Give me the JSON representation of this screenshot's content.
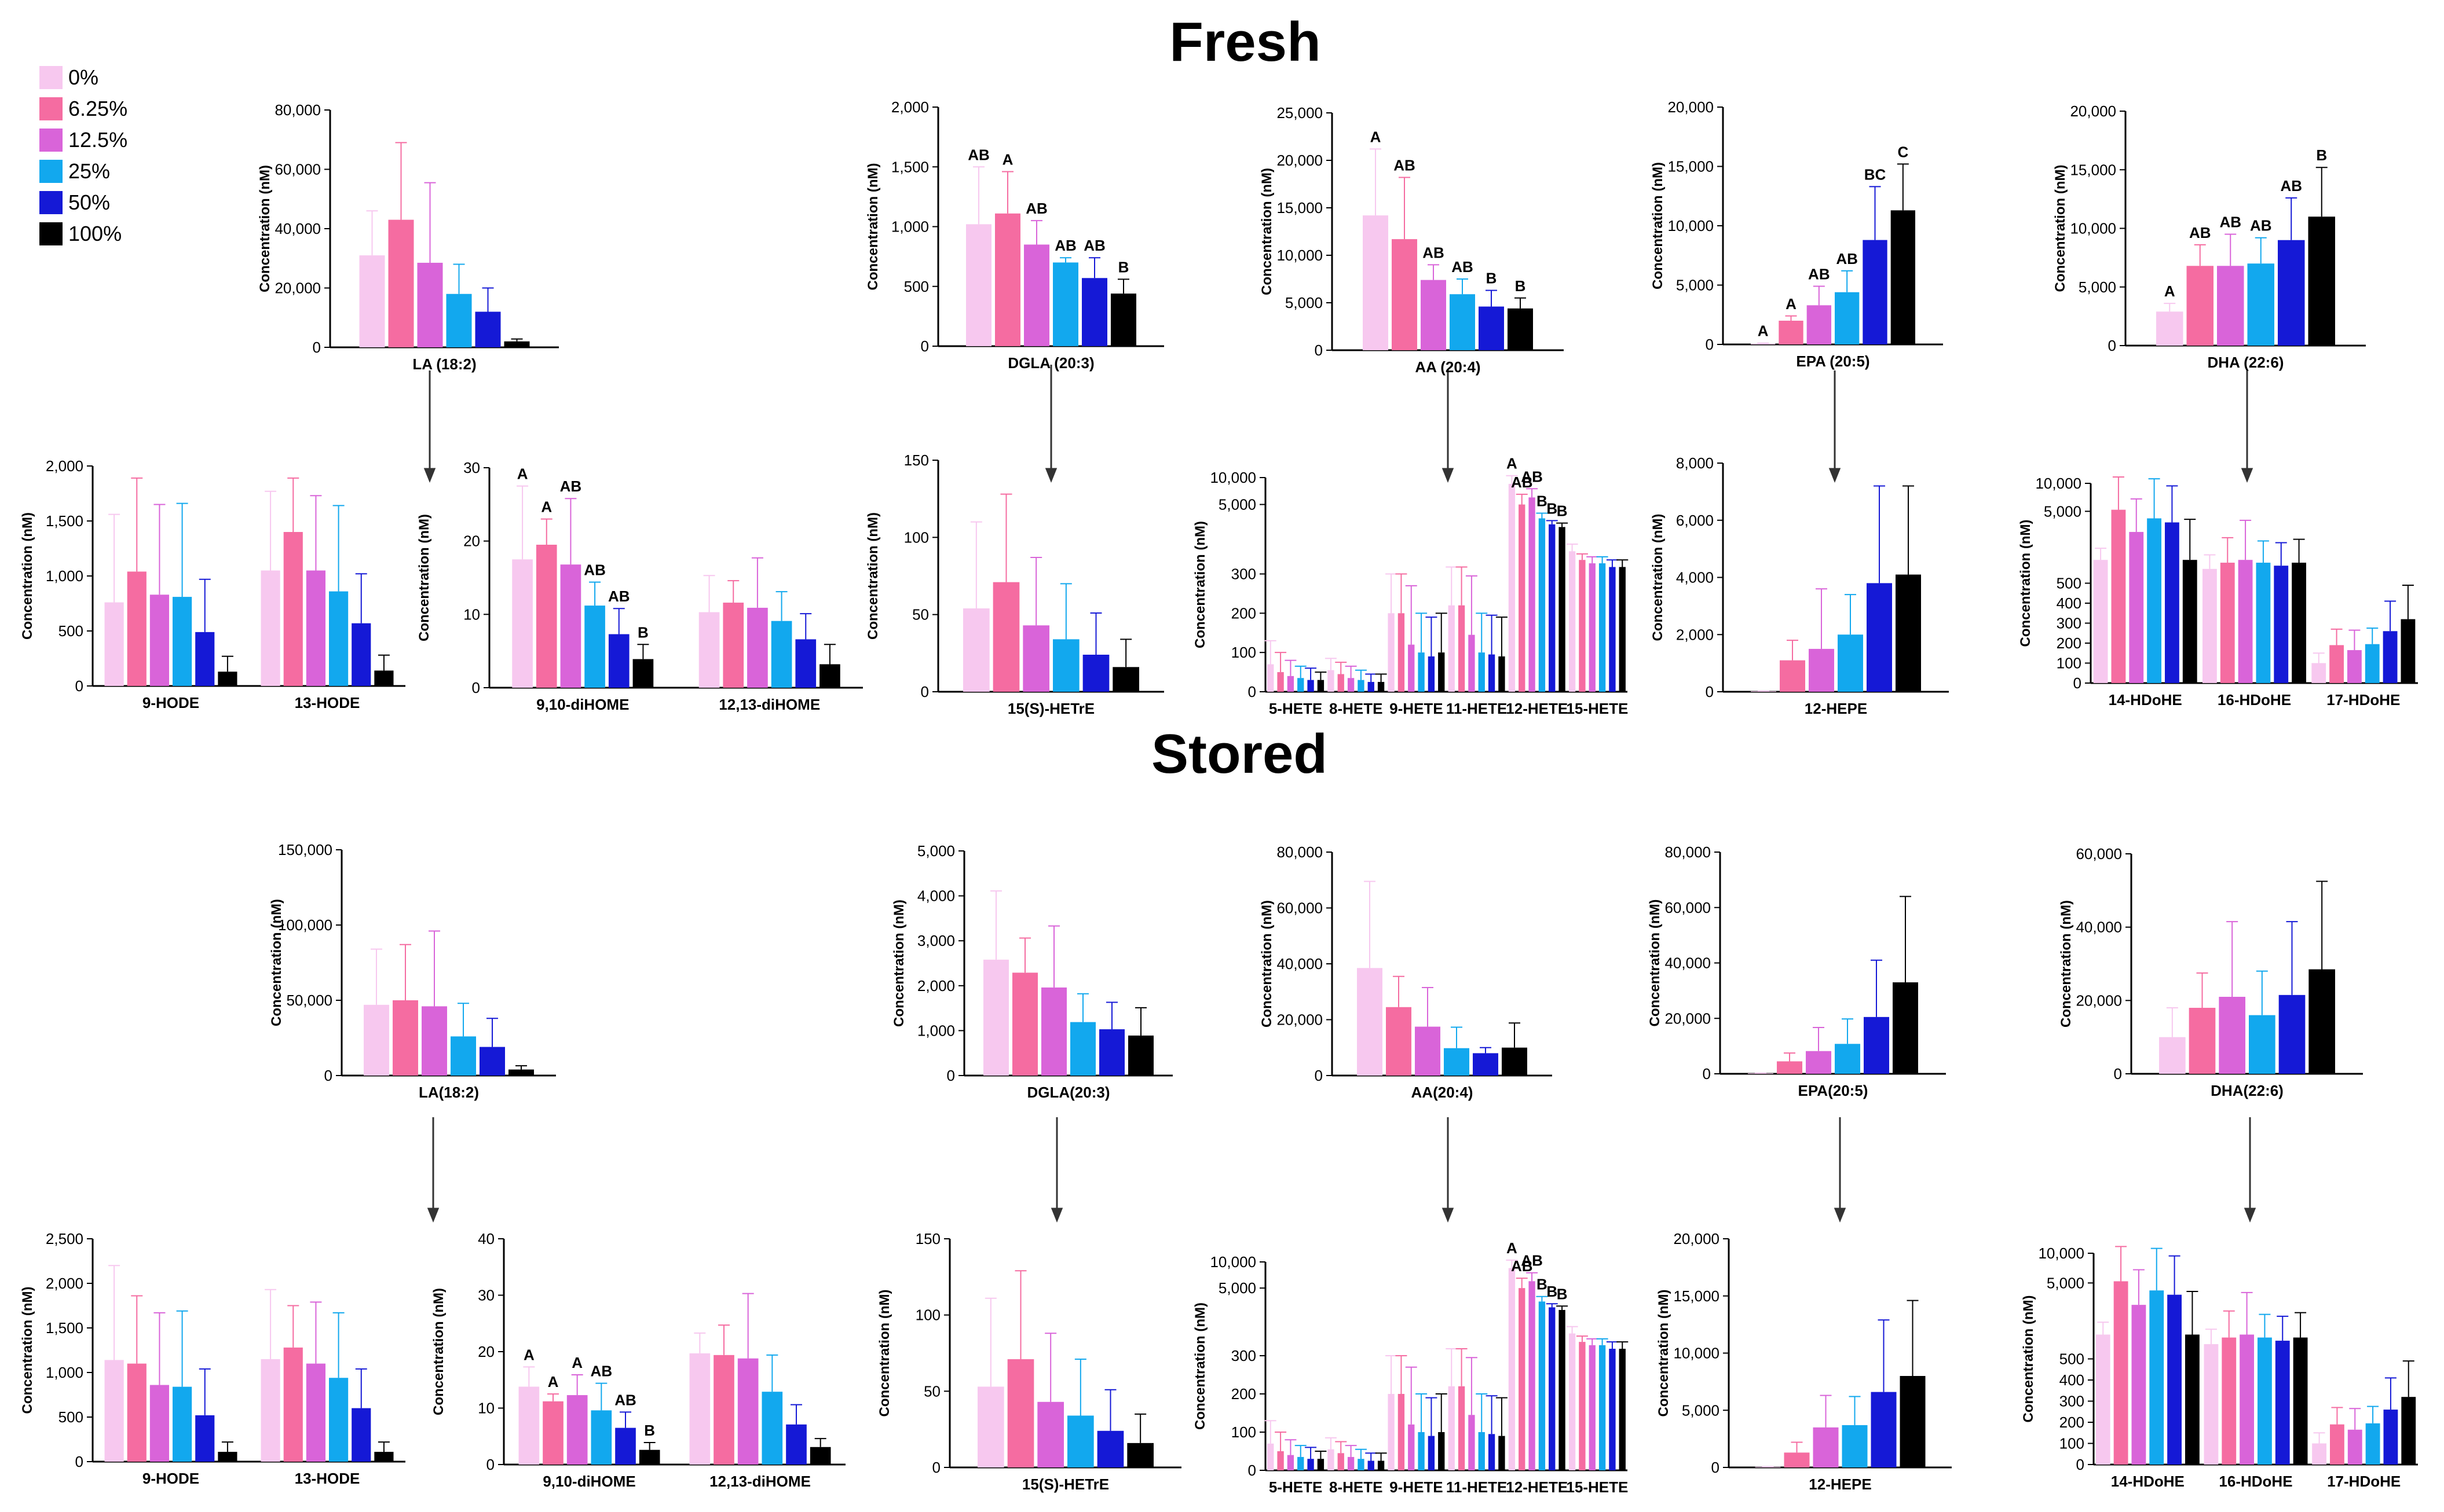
{
  "colors": [
    "#f7c8ef",
    "#f56ca1",
    "#d964d9",
    "#12a8ee",
    "#1519d6",
    "#000000"
  ],
  "legend": [
    "0%",
    "6.25%",
    "12.5%",
    "25%",
    "50%",
    "100%"
  ],
  "sections": [
    {
      "title": "Fresh"
    },
    {
      "title": "Stored"
    }
  ],
  "chart_data": [
    {
      "id": "f-la",
      "section": "Fresh",
      "type": "bar",
      "ylabel": "Concentration (nM)",
      "ylim": [
        0,
        80000
      ],
      "yticks": [
        "0",
        "20,000",
        "40,000",
        "60,000",
        "80,000"
      ],
      "categories": [
        "LA (18:2)"
      ],
      "values": [
        [
          31000,
          43000,
          28500,
          18000,
          12000,
          2000
        ]
      ],
      "errors": [
        [
          15000,
          26000,
          27000,
          10000,
          8000,
          800
        ]
      ],
      "sig": null
    },
    {
      "id": "f-dgla",
      "section": "Fresh",
      "type": "bar",
      "ylabel": "Concentration (nM)",
      "ylim": [
        0,
        2000
      ],
      "yticks": [
        "0",
        "500",
        "1,000",
        "1,500",
        "2,000"
      ],
      "categories": [
        "DGLA (20:3)"
      ],
      "values": [
        [
          1020,
          1110,
          850,
          700,
          570,
          440
        ]
      ],
      "errors": [
        [
          480,
          350,
          200,
          40,
          170,
          120
        ]
      ],
      "sig": [
        [
          "AB",
          "A",
          "AB",
          "AB",
          "AB",
          "B"
        ]
      ]
    },
    {
      "id": "f-aa",
      "section": "Fresh",
      "type": "bar",
      "ylabel": "Concentration (nM)",
      "ylim": [
        0,
        25000
      ],
      "yticks": [
        "0",
        "5,000",
        "10,000",
        "15,000",
        "20,000",
        "25,000"
      ],
      "categories": [
        "AA (20:4)"
      ],
      "values": [
        [
          14200,
          11700,
          7400,
          5900,
          4600,
          4400
        ]
      ],
      "errors": [
        [
          7000,
          6500,
          1600,
          1600,
          1700,
          1100
        ]
      ],
      "sig": [
        [
          "A",
          "AB",
          "AB",
          "AB",
          "B",
          "B"
        ]
      ]
    },
    {
      "id": "f-epa",
      "section": "Fresh",
      "type": "bar",
      "ylabel": "Concentration (nM)",
      "ylim": [
        0,
        20000
      ],
      "yticks": [
        "0",
        "5,000",
        "10,000",
        "15,000",
        "20,000"
      ],
      "categories": [
        "EPA (20:5)"
      ],
      "values": [
        [
          80,
          2000,
          3300,
          4400,
          8800,
          11300
        ]
      ],
      "errors": [
        [
          30,
          400,
          1600,
          1800,
          4500,
          3900
        ]
      ],
      "sig": [
        [
          "A",
          "A",
          "AB",
          "AB",
          "BC",
          "C"
        ]
      ]
    },
    {
      "id": "f-dha",
      "section": "Fresh",
      "type": "bar",
      "ylabel": "Concentration (nM)",
      "ylim": [
        0,
        20000
      ],
      "yticks": [
        "0",
        "5,000",
        "10,000",
        "15,000",
        "20,000"
      ],
      "categories": [
        "DHA (22:6)"
      ],
      "values": [
        [
          2900,
          6800,
          6800,
          7000,
          9000,
          11000
        ]
      ],
      "errors": [
        [
          700,
          1800,
          2700,
          2200,
          3600,
          4200
        ]
      ],
      "sig": [
        [
          "A",
          "AB",
          "AB",
          "AB",
          "AB",
          "B"
        ]
      ]
    },
    {
      "id": "f-hode",
      "section": "Fresh",
      "type": "bar",
      "ylabel": "Concentration (nM)",
      "ylim": [
        0,
        2000
      ],
      "yticks": [
        "0",
        "500",
        "1,000",
        "1,500",
        "2,000"
      ],
      "categories": [
        "9-HODE",
        "13-HODE"
      ],
      "values": [
        [
          760,
          1040,
          830,
          810,
          490,
          130
        ],
        [
          1050,
          1400,
          1050,
          860,
          570,
          140
        ]
      ],
      "errors": [
        [
          800,
          850,
          820,
          850,
          480,
          140
        ],
        [
          720,
          490,
          680,
          780,
          450,
          140
        ]
      ],
      "sig": null
    },
    {
      "id": "f-dihome",
      "section": "Fresh",
      "type": "bar",
      "ylabel": "Concentration (nM)",
      "ylim": [
        0,
        30
      ],
      "yticks": [
        "0",
        "10",
        "20",
        "30"
      ],
      "categories": [
        "9,10-diHOME",
        "12,13-diHOME"
      ],
      "values": [
        [
          17.5,
          19.5,
          16.8,
          11.2,
          7.3,
          3.9
        ],
        [
          10.3,
          11.6,
          10.9,
          9.1,
          6.6,
          3.2
        ]
      ],
      "errors": [
        [
          10,
          3.5,
          9,
          3.2,
          3.5,
          2
        ],
        [
          5,
          3,
          6.8,
          4,
          3.5,
          2.7
        ]
      ],
      "sig": [
        [
          "A",
          "A",
          "AB",
          "AB",
          "AB",
          "B"
        ],
        null
      ]
    },
    {
      "id": "f-hetre",
      "section": "Fresh",
      "type": "bar",
      "ylabel": "Concentration (nM)",
      "ylim": [
        0,
        150
      ],
      "yticks": [
        "0",
        "50",
        "100",
        "150"
      ],
      "categories": [
        "15(S)-HETrE"
      ],
      "values": [
        [
          54,
          71,
          43,
          34,
          24,
          16
        ]
      ],
      "errors": [
        [
          56,
          57,
          44,
          36,
          27,
          18
        ]
      ],
      "sig": null
    },
    {
      "id": "f-hete",
      "section": "Fresh",
      "type": "bar",
      "scale": "broken",
      "ylabel": "Concentration (nM)",
      "yticks": [
        "0",
        "100",
        "200",
        "300",
        "5,000",
        "10,000"
      ],
      "categories": [
        "5-HETE",
        "8-HETE",
        "9-HETE",
        "11-HETE",
        "12-HETE",
        "15-HETE"
      ],
      "values": [
        [
          70,
          50,
          40,
          35,
          30,
          30
        ],
        [
          55,
          45,
          35,
          30,
          25,
          25
        ],
        [
          200,
          200,
          120,
          100,
          90,
          100
        ],
        [
          220,
          220,
          145,
          100,
          95,
          90
        ],
        [
          8500,
          5000,
          6000,
          3500,
          3000,
          2800
        ],
        [
          1500,
          1200,
          1100,
          1100,
          1000,
          1000
        ]
      ],
      "errors": [
        [
          60,
          50,
          40,
          30,
          30,
          20
        ],
        [
          30,
          30,
          30,
          25,
          20,
          20
        ],
        [
          100,
          100,
          150,
          100,
          100,
          100
        ],
        [
          100,
          100,
          150,
          100,
          100,
          100
        ],
        [
          2000,
          1500,
          1500,
          500,
          300,
          300
        ],
        [
          300,
          200,
          200,
          200,
          200,
          200
        ]
      ],
      "sig": [
        null,
        null,
        null,
        null,
        [
          "A",
          "AB",
          "AB",
          "B",
          "B",
          "B"
        ],
        null
      ]
    },
    {
      "id": "f-hepe",
      "section": "Fresh",
      "type": "bar",
      "ylabel": "Concentration (nM)",
      "ylim": [
        0,
        8000
      ],
      "yticks": [
        "0",
        "2,000",
        "4,000",
        "6,000",
        "8,000"
      ],
      "categories": [
        "12-HEPE"
      ],
      "values": [
        [
          20,
          1100,
          1500,
          2000,
          3800,
          4100
        ]
      ],
      "errors": [
        [
          10,
          700,
          2100,
          1400,
          3400,
          3100
        ]
      ],
      "sig": null
    },
    {
      "id": "f-hdohe",
      "section": "Fresh",
      "type": "bar",
      "scale": "broken",
      "ylabel": "Concentration (nM)",
      "yticks": [
        "0",
        "100",
        "200",
        "300",
        "400",
        "500",
        "5,000",
        "10,000"
      ],
      "categories": [
        "14-HDoHE",
        "16-HDoHE",
        "17-HDoHE"
      ],
      "values": [
        [
          1500,
          5200,
          3000,
          4200,
          3800,
          1500
        ],
        [
          1200,
          1400,
          1500,
          1400,
          1300,
          1400
        ],
        [
          100,
          190,
          165,
          195,
          260,
          320
        ]
      ],
      "errors": [
        [
          500,
          6500,
          3800,
          7000,
          5600,
          2600
        ],
        [
          500,
          1200,
          2500,
          1000,
          1000,
          1100
        ],
        [
          50,
          80,
          100,
          80,
          150,
          170
        ]
      ],
      "sig": null
    },
    {
      "id": "s-la",
      "section": "Stored",
      "type": "bar",
      "ylabel": "Concentration (nM)",
      "ylim": [
        0,
        150000
      ],
      "yticks": [
        "0",
        "50,000",
        "100,000",
        "150,000"
      ],
      "categories": [
        "LA(18:2)"
      ],
      "values": [
        [
          47000,
          50000,
          46000,
          26000,
          19000,
          4000
        ]
      ],
      "errors": [
        [
          37000,
          37000,
          50000,
          22000,
          19000,
          2500
        ]
      ],
      "sig": null
    },
    {
      "id": "s-dgla",
      "section": "Stored",
      "type": "bar",
      "ylabel": "Concentration (nM)",
      "ylim": [
        0,
        5000
      ],
      "yticks": [
        "0",
        "1,000",
        "2,000",
        "3,000",
        "4,000",
        "5,000"
      ],
      "categories": [
        "DGLA(20:3)"
      ],
      "values": [
        [
          2580,
          2290,
          1960,
          1190,
          1030,
          890
        ]
      ],
      "errors": [
        [
          1530,
          770,
          1370,
          630,
          600,
          620
        ]
      ],
      "sig": null
    },
    {
      "id": "s-aa",
      "section": "Stored",
      "type": "bar",
      "ylabel": "Concentration (nM)",
      "ylim": [
        0,
        80000
      ],
      "yticks": [
        "0",
        "20,000",
        "40,000",
        "60,000",
        "80,000"
      ],
      "categories": [
        "AA(20:4)"
      ],
      "values": [
        [
          38500,
          24500,
          17500,
          9800,
          8000,
          10000
        ]
      ],
      "errors": [
        [
          31000,
          11000,
          14000,
          7500,
          2000,
          8800
        ]
      ],
      "sig": null
    },
    {
      "id": "s-epa",
      "section": "Stored",
      "type": "bar",
      "ylabel": "Concentration (nM)",
      "ylim": [
        0,
        80000
      ],
      "yticks": [
        "0",
        "20,000",
        "40,000",
        "60,000",
        "80,000"
      ],
      "categories": [
        "EPA(20:5)"
      ],
      "values": [
        [
          200,
          4500,
          8200,
          10800,
          20500,
          33000
        ]
      ],
      "errors": [
        [
          100,
          3000,
          8500,
          9000,
          20500,
          31000
        ]
      ],
      "sig": null
    },
    {
      "id": "s-dha",
      "section": "Stored",
      "type": "bar",
      "ylabel": "Concentration (nM)",
      "ylim": [
        0,
        60000
      ],
      "yticks": [
        "0",
        "20,000",
        "40,000",
        "60,000"
      ],
      "categories": [
        "DHA(22:6)"
      ],
      "values": [
        [
          10000,
          18000,
          21000,
          16000,
          21500,
          28500
        ]
      ],
      "errors": [
        [
          8000,
          9500,
          20500,
          12000,
          20000,
          24000
        ]
      ],
      "sig": null
    },
    {
      "id": "s-hode",
      "section": "Stored",
      "type": "bar",
      "ylabel": "Concentration (nM)",
      "ylim": [
        0,
        2500
      ],
      "yticks": [
        "0",
        "500",
        "1,000",
        "1,500",
        "2,000",
        "2,500"
      ],
      "categories": [
        "9-HODE",
        "13-HODE"
      ],
      "values": [
        [
          1140,
          1100,
          860,
          840,
          520,
          110
        ],
        [
          1150,
          1280,
          1100,
          940,
          600,
          110
        ]
      ],
      "errors": [
        [
          1060,
          760,
          810,
          850,
          520,
          110
        ],
        [
          780,
          470,
          690,
          730,
          440,
          110
        ]
      ],
      "sig": null
    },
    {
      "id": "s-dihome",
      "section": "Stored",
      "type": "bar",
      "ylabel": "Concentration (nM)",
      "ylim": [
        0,
        40
      ],
      "yticks": [
        "0",
        "10",
        "20",
        "30",
        "40"
      ],
      "categories": [
        "9,10-diHOME",
        "12,13-diHOME"
      ],
      "values": [
        [
          13.8,
          11.2,
          12.3,
          9.6,
          6.5,
          2.6
        ],
        [
          19.7,
          19.4,
          18.8,
          12.9,
          7.1,
          3.1
        ]
      ],
      "errors": [
        [
          3.5,
          1.3,
          3.6,
          4.8,
          2.8,
          1.3
        ],
        [
          3.6,
          5.3,
          11.5,
          6.5,
          3.5,
          1.5
        ]
      ],
      "sig": [
        [
          "A",
          "A",
          "A",
          "AB",
          "AB",
          "B"
        ],
        null
      ]
    },
    {
      "id": "s-hetre",
      "section": "Stored",
      "type": "bar",
      "ylabel": "Concentration (nM)",
      "ylim": [
        0,
        150
      ],
      "yticks": [
        "0",
        "50",
        "100",
        "150"
      ],
      "categories": [
        "15(S)-HETrE"
      ],
      "values": [
        [
          53,
          71,
          43,
          34,
          24,
          16
        ]
      ],
      "errors": [
        [
          58,
          58,
          45,
          37,
          27,
          19
        ]
      ],
      "sig": null
    },
    {
      "id": "s-hete",
      "section": "Stored",
      "type": "bar",
      "scale": "broken",
      "ylabel": "Concentration (nM)",
      "yticks": [
        "0",
        "100",
        "200",
        "300",
        "5,000",
        "10,000"
      ],
      "categories": [
        "5-HETE",
        "8-HETE",
        "9-HETE",
        "11-HETE",
        "12-HETE",
        "15-HETE"
      ],
      "values": [
        [
          70,
          50,
          40,
          35,
          30,
          30
        ],
        [
          55,
          45,
          35,
          30,
          25,
          25
        ],
        [
          200,
          200,
          120,
          100,
          90,
          100
        ],
        [
          220,
          220,
          145,
          100,
          95,
          90
        ],
        [
          8500,
          5000,
          6000,
          3500,
          3000,
          2800
        ],
        [
          1500,
          1200,
          1100,
          1100,
          1000,
          1000
        ]
      ],
      "errors": [
        [
          60,
          50,
          40,
          30,
          30,
          20
        ],
        [
          30,
          30,
          30,
          25,
          20,
          20
        ],
        [
          100,
          100,
          150,
          100,
          100,
          100
        ],
        [
          100,
          100,
          150,
          100,
          100,
          100
        ],
        [
          2000,
          1500,
          1500,
          500,
          300,
          300
        ],
        [
          300,
          200,
          200,
          200,
          200,
          200
        ]
      ],
      "sig": [
        null,
        null,
        null,
        null,
        [
          "A",
          "AB",
          "AB",
          "B",
          "B",
          "B"
        ],
        null
      ]
    },
    {
      "id": "s-hepe",
      "section": "Stored",
      "type": "bar",
      "ylabel": "Concentration (nM)",
      "ylim": [
        0,
        20000
      ],
      "yticks": [
        "0",
        "5,000",
        "10,000",
        "15,000",
        "20,000"
      ],
      "categories": [
        "12-HEPE"
      ],
      "values": [
        [
          50,
          1300,
          3500,
          3700,
          6600,
          8000
        ]
      ],
      "errors": [
        [
          20,
          900,
          2800,
          2500,
          6300,
          6600
        ]
      ],
      "sig": null
    },
    {
      "id": "s-hdohe",
      "section": "Stored",
      "type": "bar",
      "scale": "broken",
      "ylabel": "Concentration (nM)",
      "yticks": [
        "0",
        "100",
        "200",
        "300",
        "400",
        "500",
        "5,000",
        "10,000"
      ],
      "categories": [
        "14-HDoHE",
        "16-HDoHE",
        "17-HDoHE"
      ],
      "values": [
        [
          1500,
          5200,
          3000,
          4200,
          3800,
          1500
        ],
        [
          1200,
          1400,
          1500,
          1400,
          1300,
          1400
        ],
        [
          100,
          190,
          165,
          195,
          260,
          320
        ]
      ],
      "errors": [
        [
          500,
          6500,
          3800,
          7000,
          5600,
          2600
        ],
        [
          500,
          1200,
          2500,
          1000,
          1000,
          1100
        ],
        [
          50,
          80,
          100,
          80,
          150,
          170
        ]
      ],
      "sig": null
    }
  ]
}
